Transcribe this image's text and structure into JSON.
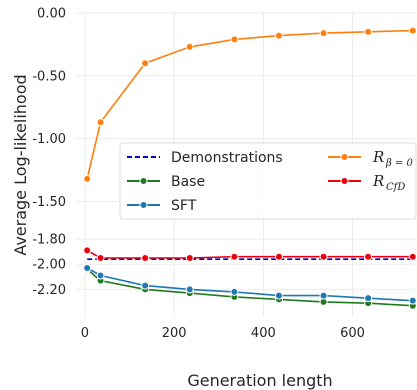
{
  "chart_data": {
    "type": "line",
    "title": "",
    "xlabel": "Generation length",
    "ylabel": "Average Log-likelihood",
    "xlim": [
      -20,
      740
    ],
    "ylim": [
      -2.42,
      0.0
    ],
    "xticks": [
      0,
      200,
      400,
      600
    ],
    "xtick_labels": [
      "0",
      "200",
      "400",
      "600"
    ],
    "yticks": [
      0.0,
      -0.5,
      -1.0,
      -1.5,
      -1.8,
      -2.0,
      -2.2
    ],
    "ytick_labels": [
      "0.00",
      "-0.50",
      "-1.00",
      "-1.50",
      "-1.80",
      "-2.00",
      "-2.20"
    ],
    "grid": true,
    "legend_position": "center-right",
    "series": [
      {
        "name": "Demonstrations",
        "color": "#0000cc",
        "style": "dashed",
        "marker": "none",
        "x": [
          5,
          35,
          135,
          235,
          335,
          435,
          535,
          635,
          735
        ],
        "y": [
          -1.96,
          -1.96,
          -1.96,
          -1.96,
          -1.96,
          -1.96,
          -1.96,
          -1.96,
          -1.96
        ]
      },
      {
        "name": "Base",
        "color": "#1f7a1f",
        "style": "solid",
        "marker": "circle",
        "x": [
          5,
          35,
          135,
          235,
          335,
          435,
          535,
          635,
          735
        ],
        "y": [
          -2.04,
          -2.13,
          -2.2,
          -2.23,
          -2.26,
          -2.28,
          -2.3,
          -2.31,
          -2.33
        ]
      },
      {
        "name": "SFT",
        "color": "#1f77b4",
        "style": "solid",
        "marker": "circle",
        "x": [
          5,
          35,
          135,
          235,
          335,
          435,
          535,
          635,
          735
        ],
        "y": [
          -2.03,
          -2.09,
          -2.17,
          -2.2,
          -2.22,
          -2.25,
          -2.25,
          -2.27,
          -2.29
        ]
      },
      {
        "name_base": "R",
        "name_sub": "β = 0",
        "color": "#ff7f0e",
        "style": "solid",
        "marker": "circle",
        "x": [
          5,
          35,
          135,
          235,
          335,
          435,
          535,
          635,
          735
        ],
        "y": [
          -1.32,
          -0.87,
          -0.4,
          -0.27,
          -0.21,
          -0.18,
          -0.16,
          -0.15,
          -0.14
        ]
      },
      {
        "name_base": "R",
        "name_sub": "CfD",
        "color": "#e8000b",
        "style": "solid",
        "marker": "circle",
        "x": [
          5,
          35,
          135,
          235,
          335,
          435,
          535,
          635,
          735
        ],
        "y": [
          -1.89,
          -1.95,
          -1.95,
          -1.95,
          -1.94,
          -1.94,
          -1.94,
          -1.94,
          -1.94
        ]
      }
    ]
  }
}
